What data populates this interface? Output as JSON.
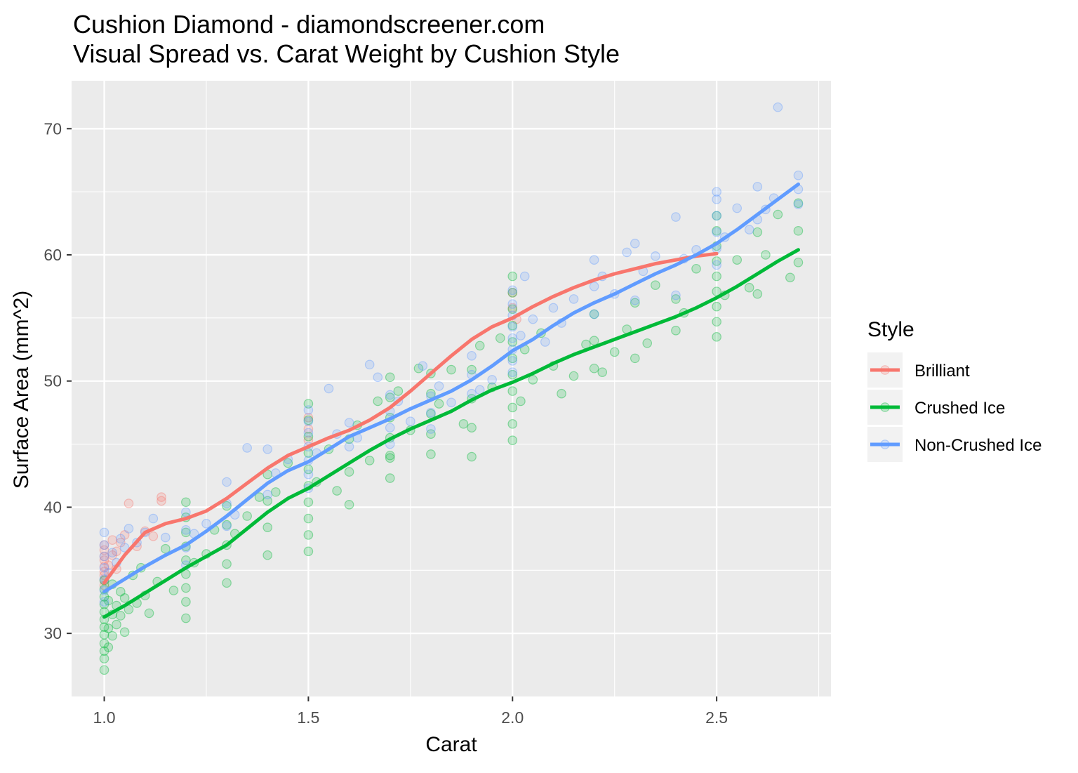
{
  "chart_data": {
    "type": "scatter",
    "title": "Cushion Diamond - diamondscreener.com",
    "subtitle": "Visual Spread vs. Carat Weight by Cushion Style",
    "xlabel": "Carat",
    "ylabel": "Surface Area (mm^2)",
    "xlim": [
      0.92,
      2.78
    ],
    "ylim": [
      25.0,
      73.8
    ],
    "x_ticks": [
      "1.0",
      "1.5",
      "2.0",
      "2.5"
    ],
    "y_ticks": [
      "30",
      "40",
      "50",
      "60",
      "70"
    ],
    "grid": true,
    "legend": {
      "title": "Style",
      "position": "right",
      "entries": [
        "Brilliant",
        "Crushed Ice",
        "Non-Crushed Ice"
      ]
    },
    "colors": {
      "Brilliant": "#F8766D",
      "Crushed Ice": "#00BA38",
      "Non-Crushed Ice": "#619CFF",
      "panel": "#EBEBEB",
      "grid": "#FFFFFF"
    },
    "series": [
      {
        "name": "Brilliant",
        "smooth": {
          "x": [
            1.0,
            1.05,
            1.1,
            1.15,
            1.2,
            1.25,
            1.3,
            1.35,
            1.4,
            1.45,
            1.5,
            1.55,
            1.6,
            1.65,
            1.7,
            1.75,
            1.8,
            1.85,
            1.9,
            1.95,
            2.0,
            2.05,
            2.1,
            2.15,
            2.2,
            2.25,
            2.3,
            2.35,
            2.4,
            2.45,
            2.5
          ],
          "y": [
            34.0,
            36.2,
            38.0,
            38.7,
            39.1,
            39.7,
            40.7,
            41.9,
            43.1,
            44.1,
            44.8,
            45.5,
            46.1,
            46.9,
            47.9,
            49.2,
            50.6,
            52.0,
            53.3,
            54.3,
            55.0,
            55.9,
            56.7,
            57.4,
            58.0,
            58.5,
            58.9,
            59.3,
            59.6,
            59.9,
            60.1
          ]
        },
        "points": {
          "x": [
            1.0,
            1.0,
            1.0,
            1.0,
            1.0,
            1.0,
            1.0,
            1.0,
            1.0,
            1.01,
            1.02,
            1.02,
            1.03,
            1.03,
            1.04,
            1.05,
            1.06,
            1.08,
            1.1,
            1.12,
            1.14,
            1.14,
            1.5,
            1.5,
            1.5,
            2.0,
            2.0,
            2.01
          ],
          "y": [
            34.2,
            34.9,
            35.3,
            35.8,
            36.1,
            36.6,
            37.0,
            33.8,
            34.6,
            35.4,
            36.2,
            37.4,
            35.1,
            36.5,
            37.2,
            37.8,
            40.3,
            36.9,
            38.1,
            37.7,
            40.5,
            40.8,
            45.3,
            46.2,
            47.1,
            55.8,
            57.0,
            54.9
          ]
        }
      },
      {
        "name": "Crushed Ice",
        "smooth": {
          "x": [
            1.0,
            1.05,
            1.1,
            1.15,
            1.2,
            1.25,
            1.3,
            1.35,
            1.4,
            1.45,
            1.5,
            1.55,
            1.6,
            1.65,
            1.7,
            1.75,
            1.8,
            1.85,
            1.9,
            1.95,
            2.0,
            2.05,
            2.1,
            2.15,
            2.2,
            2.25,
            2.3,
            2.35,
            2.4,
            2.45,
            2.5,
            2.55,
            2.6,
            2.65,
            2.7
          ],
          "y": [
            31.3,
            32.2,
            33.2,
            34.2,
            35.2,
            36.1,
            37.0,
            38.3,
            39.6,
            40.7,
            41.5,
            42.5,
            43.5,
            44.5,
            45.4,
            46.2,
            46.9,
            47.6,
            48.5,
            49.3,
            49.9,
            50.6,
            51.4,
            52.1,
            52.7,
            53.3,
            53.9,
            54.5,
            55.1,
            55.8,
            56.6,
            57.5,
            58.5,
            59.5,
            60.4
          ]
        },
        "points": {
          "x": [
            1.0,
            1.0,
            1.0,
            1.0,
            1.0,
            1.0,
            1.0,
            1.0,
            1.0,
            1.0,
            1.0,
            1.0,
            1.01,
            1.01,
            1.01,
            1.02,
            1.02,
            1.02,
            1.03,
            1.03,
            1.04,
            1.04,
            1.05,
            1.05,
            1.06,
            1.07,
            1.08,
            1.09,
            1.1,
            1.11,
            1.13,
            1.15,
            1.17,
            1.2,
            1.2,
            1.2,
            1.2,
            1.2,
            1.2,
            1.2,
            1.2,
            1.2,
            1.22,
            1.25,
            1.27,
            1.3,
            1.3,
            1.3,
            1.3,
            1.3,
            1.32,
            1.35,
            1.38,
            1.4,
            1.4,
            1.4,
            1.4,
            1.42,
            1.45,
            1.5,
            1.5,
            1.5,
            1.5,
            1.5,
            1.5,
            1.5,
            1.5,
            1.5,
            1.5,
            1.52,
            1.55,
            1.57,
            1.6,
            1.6,
            1.6,
            1.62,
            1.65,
            1.67,
            1.7,
            1.7,
            1.7,
            1.7,
            1.7,
            1.7,
            1.7,
            1.72,
            1.75,
            1.77,
            1.8,
            1.8,
            1.8,
            1.8,
            1.8,
            1.82,
            1.85,
            1.88,
            1.9,
            1.9,
            1.9,
            1.9,
            1.92,
            1.95,
            1.97,
            2.0,
            2.0,
            2.0,
            2.0,
            2.0,
            2.0,
            2.0,
            2.0,
            2.0,
            2.0,
            2.0,
            2.02,
            2.03,
            2.05,
            2.07,
            2.1,
            2.12,
            2.15,
            2.18,
            2.2,
            2.2,
            2.2,
            2.22,
            2.25,
            2.28,
            2.3,
            2.3,
            2.33,
            2.35,
            2.4,
            2.4,
            2.42,
            2.45,
            2.5,
            2.5,
            2.5,
            2.5,
            2.5,
            2.5,
            2.5,
            2.5,
            2.5,
            2.52,
            2.55,
            2.58,
            2.6,
            2.6,
            2.62,
            2.65,
            2.68,
            2.7,
            2.7,
            2.7
          ],
          "y": [
            27.1,
            28.0,
            28.6,
            29.2,
            29.9,
            30.5,
            31.1,
            31.7,
            32.3,
            32.9,
            33.5,
            34.2,
            28.9,
            30.4,
            32.6,
            29.8,
            31.5,
            33.9,
            30.7,
            32.2,
            31.4,
            33.3,
            30.1,
            32.8,
            31.9,
            34.6,
            32.4,
            35.2,
            33.0,
            31.6,
            34.1,
            36.7,
            33.4,
            31.2,
            32.5,
            33.6,
            34.7,
            35.8,
            36.9,
            38.0,
            39.2,
            40.4,
            35.6,
            36.3,
            38.2,
            34.0,
            35.5,
            37.0,
            38.6,
            40.1,
            37.9,
            39.3,
            40.8,
            36.2,
            38.4,
            40.5,
            42.6,
            41.2,
            43.5,
            36.5,
            37.8,
            39.1,
            40.4,
            41.7,
            43.0,
            44.3,
            45.6,
            46.9,
            48.2,
            42.0,
            44.6,
            41.3,
            40.2,
            42.8,
            45.4,
            46.5,
            43.7,
            48.4,
            42.3,
            43.9,
            45.5,
            47.1,
            48.7,
            50.3,
            44.1,
            49.2,
            46.1,
            51.0,
            44.2,
            45.8,
            47.4,
            49.0,
            50.6,
            48.2,
            50.9,
            46.6,
            44.0,
            46.3,
            48.6,
            50.9,
            52.8,
            49.5,
            53.4,
            45.3,
            46.6,
            47.9,
            49.2,
            50.5,
            51.8,
            53.1,
            54.4,
            55.7,
            57.0,
            58.3,
            48.4,
            52.5,
            50.1,
            53.8,
            51.2,
            49.0,
            50.4,
            52.9,
            51.0,
            53.2,
            55.3,
            50.7,
            52.3,
            54.1,
            51.8,
            56.2,
            53.0,
            57.6,
            54.0,
            56.5,
            55.4,
            58.9,
            53.5,
            54.7,
            55.9,
            57.1,
            58.3,
            59.5,
            60.7,
            61.9,
            63.1,
            56.8,
            59.6,
            57.4,
            56.9,
            61.8,
            60.0,
            63.2,
            58.2,
            59.4,
            61.9,
            64.1
          ]
        }
      },
      {
        "name": "Non-Crushed Ice",
        "smooth": {
          "x": [
            1.0,
            1.05,
            1.1,
            1.15,
            1.2,
            1.25,
            1.3,
            1.35,
            1.4,
            1.45,
            1.5,
            1.55,
            1.6,
            1.65,
            1.7,
            1.75,
            1.8,
            1.85,
            1.9,
            1.95,
            2.0,
            2.05,
            2.1,
            2.15,
            2.2,
            2.25,
            2.3,
            2.35,
            2.4,
            2.45,
            2.5,
            2.55,
            2.6,
            2.65,
            2.7
          ],
          "y": [
            33.3,
            34.3,
            35.3,
            36.2,
            37.0,
            38.1,
            39.3,
            40.6,
            41.9,
            42.9,
            43.6,
            44.6,
            45.6,
            46.3,
            47.0,
            47.8,
            48.5,
            49.2,
            50.1,
            51.2,
            52.4,
            53.3,
            54.4,
            55.4,
            56.2,
            56.9,
            57.7,
            58.5,
            59.2,
            60.0,
            60.9,
            62.0,
            63.2,
            64.4,
            65.6
          ]
        },
        "points": {
          "x": [
            1.0,
            1.0,
            1.0,
            1.0,
            1.0,
            1.0,
            1.0,
            1.01,
            1.02,
            1.03,
            1.04,
            1.05,
            1.06,
            1.08,
            1.1,
            1.12,
            1.15,
            1.2,
            1.2,
            1.2,
            1.2,
            1.22,
            1.25,
            1.3,
            1.3,
            1.3,
            1.32,
            1.35,
            1.4,
            1.4,
            1.42,
            1.45,
            1.5,
            1.5,
            1.5,
            1.5,
            1.5,
            1.5,
            1.5,
            1.52,
            1.55,
            1.57,
            1.6,
            1.6,
            1.62,
            1.65,
            1.67,
            1.7,
            1.7,
            1.7,
            1.7,
            1.72,
            1.75,
            1.78,
            1.8,
            1.8,
            1.8,
            1.82,
            1.85,
            1.9,
            1.9,
            1.9,
            1.92,
            1.95,
            2.0,
            2.0,
            2.0,
            2.0,
            2.0,
            2.0,
            2.0,
            2.0,
            2.02,
            2.03,
            2.05,
            2.08,
            2.1,
            2.12,
            2.15,
            2.2,
            2.2,
            2.2,
            2.22,
            2.25,
            2.28,
            2.3,
            2.3,
            2.32,
            2.35,
            2.4,
            2.4,
            2.42,
            2.45,
            2.5,
            2.5,
            2.5,
            2.5,
            2.5,
            2.5,
            2.52,
            2.55,
            2.58,
            2.6,
            2.6,
            2.62,
            2.64,
            2.65,
            2.7,
            2.7,
            2.7
          ],
          "y": [
            32.5,
            33.4,
            34.3,
            35.2,
            36.1,
            37.0,
            38.0,
            34.8,
            36.4,
            35.6,
            37.5,
            36.8,
            38.3,
            37.2,
            38.0,
            39.1,
            37.6,
            35.4,
            36.8,
            38.2,
            39.6,
            37.9,
            38.7,
            38.5,
            40.3,
            42.0,
            39.4,
            44.7,
            41.0,
            44.6,
            42.7,
            43.8,
            41.5,
            42.6,
            43.7,
            44.8,
            45.9,
            46.8,
            47.7,
            44.3,
            49.4,
            45.8,
            44.8,
            46.7,
            45.5,
            51.3,
            50.3,
            45.0,
            46.3,
            47.6,
            48.9,
            48.4,
            46.8,
            51.2,
            46.2,
            47.5,
            48.8,
            49.6,
            48.3,
            49.0,
            50.5,
            52.0,
            49.3,
            50.1,
            50.7,
            51.6,
            52.5,
            53.4,
            54.3,
            55.2,
            56.1,
            57.2,
            53.6,
            58.3,
            54.9,
            53.1,
            55.8,
            54.6,
            56.5,
            55.3,
            57.5,
            59.6,
            58.3,
            56.9,
            60.2,
            56.4,
            60.9,
            58.7,
            59.9,
            56.8,
            63.0,
            59.7,
            60.4,
            59.2,
            60.5,
            61.8,
            63.1,
            64.4,
            65.0,
            61.4,
            63.7,
            62.0,
            62.8,
            65.4,
            63.6,
            64.5,
            71.7,
            64.0,
            65.2,
            66.3
          ]
        }
      }
    ]
  }
}
